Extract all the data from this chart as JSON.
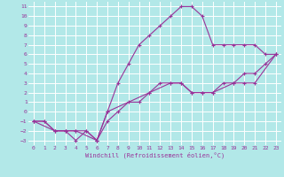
{
  "xlabel": "Windchill (Refroidissement éolien,°C)",
  "bg_color": "#b2e8e8",
  "grid_color": "#ffffff",
  "line_color": "#993399",
  "xlim": [
    -0.5,
    23.5
  ],
  "ylim": [
    -3.5,
    11.5
  ],
  "xticks": [
    0,
    1,
    2,
    3,
    4,
    5,
    6,
    7,
    8,
    9,
    10,
    11,
    12,
    13,
    14,
    15,
    16,
    17,
    18,
    19,
    20,
    21,
    22,
    23
  ],
  "yticks": [
    -3,
    -2,
    -1,
    0,
    1,
    2,
    3,
    4,
    5,
    6,
    7,
    8,
    9,
    10,
    11
  ],
  "line1_x": [
    0,
    1,
    2,
    3,
    4,
    5,
    6,
    7,
    8,
    9,
    10,
    11,
    12,
    13,
    14,
    15,
    16,
    17,
    18,
    19,
    20,
    21,
    22,
    23
  ],
  "line1_y": [
    -1,
    -1,
    -2,
    -2,
    -3,
    -2,
    -3,
    -1,
    0,
    1,
    1,
    2,
    3,
    3,
    3,
    2,
    2,
    2,
    3,
    3,
    4,
    4,
    5,
    6
  ],
  "line2_x": [
    0,
    1,
    2,
    3,
    4,
    5,
    6,
    7,
    8,
    9,
    10,
    11,
    12,
    13,
    14,
    15,
    16,
    17,
    18,
    19,
    20,
    21,
    22,
    23
  ],
  "line2_y": [
    -1,
    -1,
    -2,
    -2,
    -2,
    -2,
    -3,
    0,
    3,
    5,
    7,
    8,
    9,
    10,
    11,
    11,
    10,
    7,
    7,
    7,
    7,
    7,
    6,
    6
  ],
  "line3_x": [
    0,
    2,
    3,
    4,
    6,
    7,
    11,
    13,
    14,
    15,
    16,
    17,
    19,
    20,
    21,
    23
  ],
  "line3_y": [
    -1,
    -2,
    -2,
    -2,
    -3,
    0,
    2,
    3,
    3,
    2,
    2,
    2,
    3,
    3,
    3,
    6
  ]
}
